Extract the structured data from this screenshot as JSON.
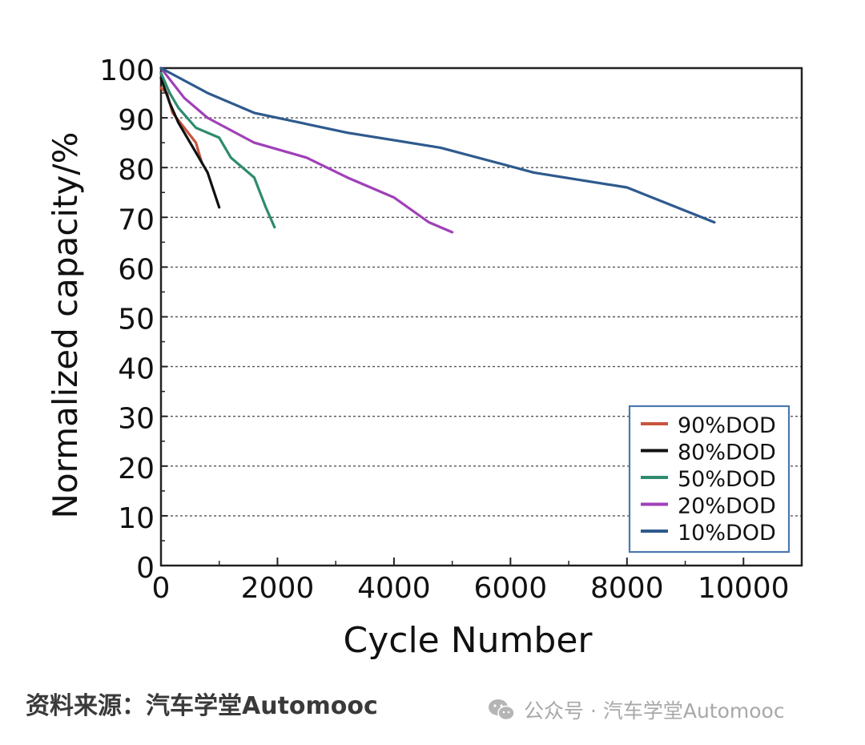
{
  "chart_data": {
    "type": "line",
    "title": "",
    "xlabel": "Cycle Number",
    "ylabel": "Normalized capacity/%",
    "xlim": [
      0,
      11000
    ],
    "ylim": [
      0,
      100
    ],
    "x_ticks": [
      0,
      2000,
      4000,
      6000,
      8000,
      10000
    ],
    "x_tick_labels": [
      "0",
      "2000",
      "4000",
      "6000",
      "8000",
      "10000"
    ],
    "y_ticks": [
      0,
      10,
      20,
      30,
      40,
      50,
      60,
      70,
      80,
      90,
      100
    ],
    "y_tick_labels": [
      "0",
      "10",
      "20",
      "30",
      "40",
      "50",
      "60",
      "70",
      "80",
      "90",
      "100"
    ],
    "grid": "horizontal dashed",
    "legend_position": "bottom-right",
    "series": [
      {
        "name": "90%DOD",
        "color": "#c8553d",
        "x": [
          0,
          100,
          200,
          400,
          600,
          700
        ],
        "y": [
          96,
          95,
          91,
          88,
          85,
          81
        ]
      },
      {
        "name": "80%DOD",
        "color": "#111111",
        "x": [
          0,
          150,
          300,
          500,
          800,
          1000
        ],
        "y": [
          98,
          93,
          89,
          85,
          79,
          72
        ]
      },
      {
        "name": "50%DOD",
        "color": "#2e8b6f",
        "x": [
          0,
          150,
          300,
          600,
          1000,
          1200,
          1600,
          1800,
          1950
        ],
        "y": [
          99,
          95,
          92,
          88,
          86,
          82,
          78,
          72,
          68
        ]
      },
      {
        "name": "20%DOD",
        "color": "#a040b8",
        "x": [
          0,
          400,
          800,
          1600,
          2500,
          3200,
          4000,
          4600,
          5000
        ],
        "y": [
          100,
          94,
          90,
          85,
          82,
          78,
          74,
          69,
          67
        ]
      },
      {
        "name": "10%DOD",
        "color": "#2e5a8e",
        "x": [
          0,
          800,
          1600,
          3200,
          4800,
          6400,
          8000,
          9500
        ],
        "y": [
          100,
          95,
          91,
          87,
          84,
          79,
          76,
          69
        ]
      }
    ]
  },
  "footer": {
    "source": "资料来源：汽车学堂Automooc",
    "wechat": "公众号 · 汽车学堂Automooc",
    "wechat_icon": "wechat-icon"
  }
}
